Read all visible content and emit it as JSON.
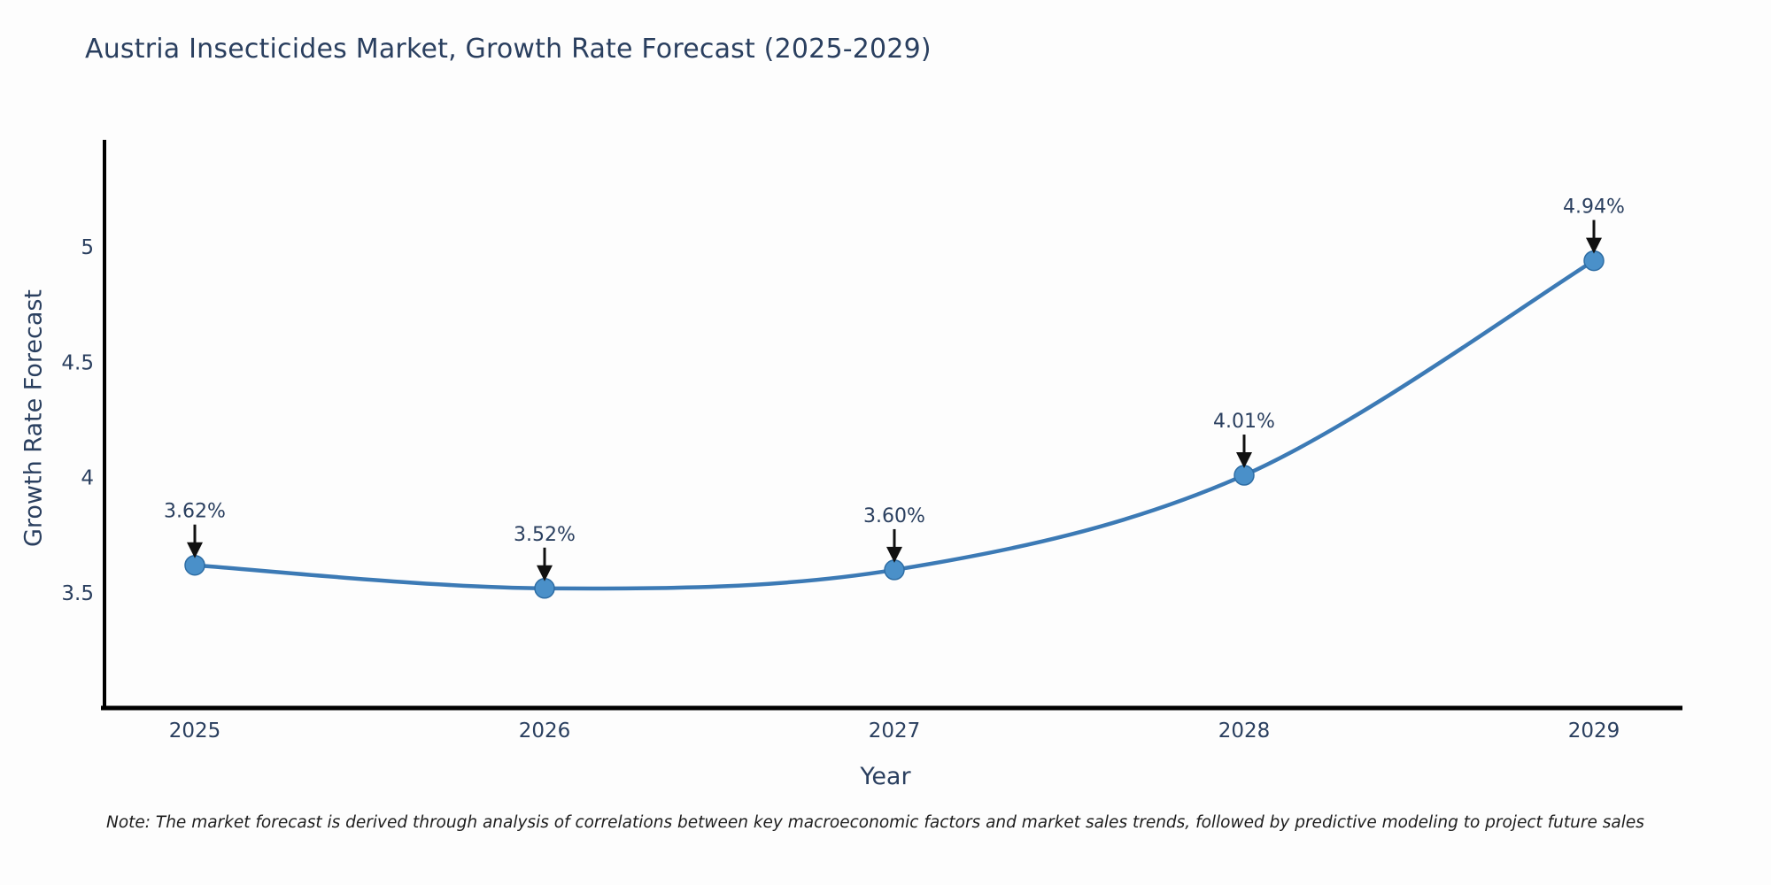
{
  "title": "Austria Insecticides Market, Growth Rate Forecast (2025-2029)",
  "note": "Note: The market forecast is derived through analysis of correlations between key macroeconomic factors and market sales trends, followed by predictive modeling to project future sales",
  "chart_data": {
    "type": "line",
    "title": "Austria Insecticides Market, Growth Rate Forecast (2025-2029)",
    "x": [
      2025,
      2026,
      2027,
      2028,
      2029
    ],
    "values": [
      3.62,
      3.52,
      3.6,
      4.01,
      4.94
    ],
    "point_labels": [
      "3.62%",
      "3.52%",
      "3.60%",
      "4.01%",
      "4.94%"
    ],
    "xlabel": "Year",
    "ylabel": "Growth Rate Forecast",
    "yticks": [
      3.5,
      4,
      4.5,
      5
    ],
    "ylim": [
      3.0,
      5.45
    ],
    "grid": false,
    "legend_position": "none",
    "line_shape": "spline",
    "colors": {
      "line": "#3c7ab5",
      "marker": "#4a90c9",
      "marker_edge": "#2e6da4",
      "axis": "#000000",
      "text": "#2a3f5f",
      "annotation_arrow": "#111111"
    }
  }
}
